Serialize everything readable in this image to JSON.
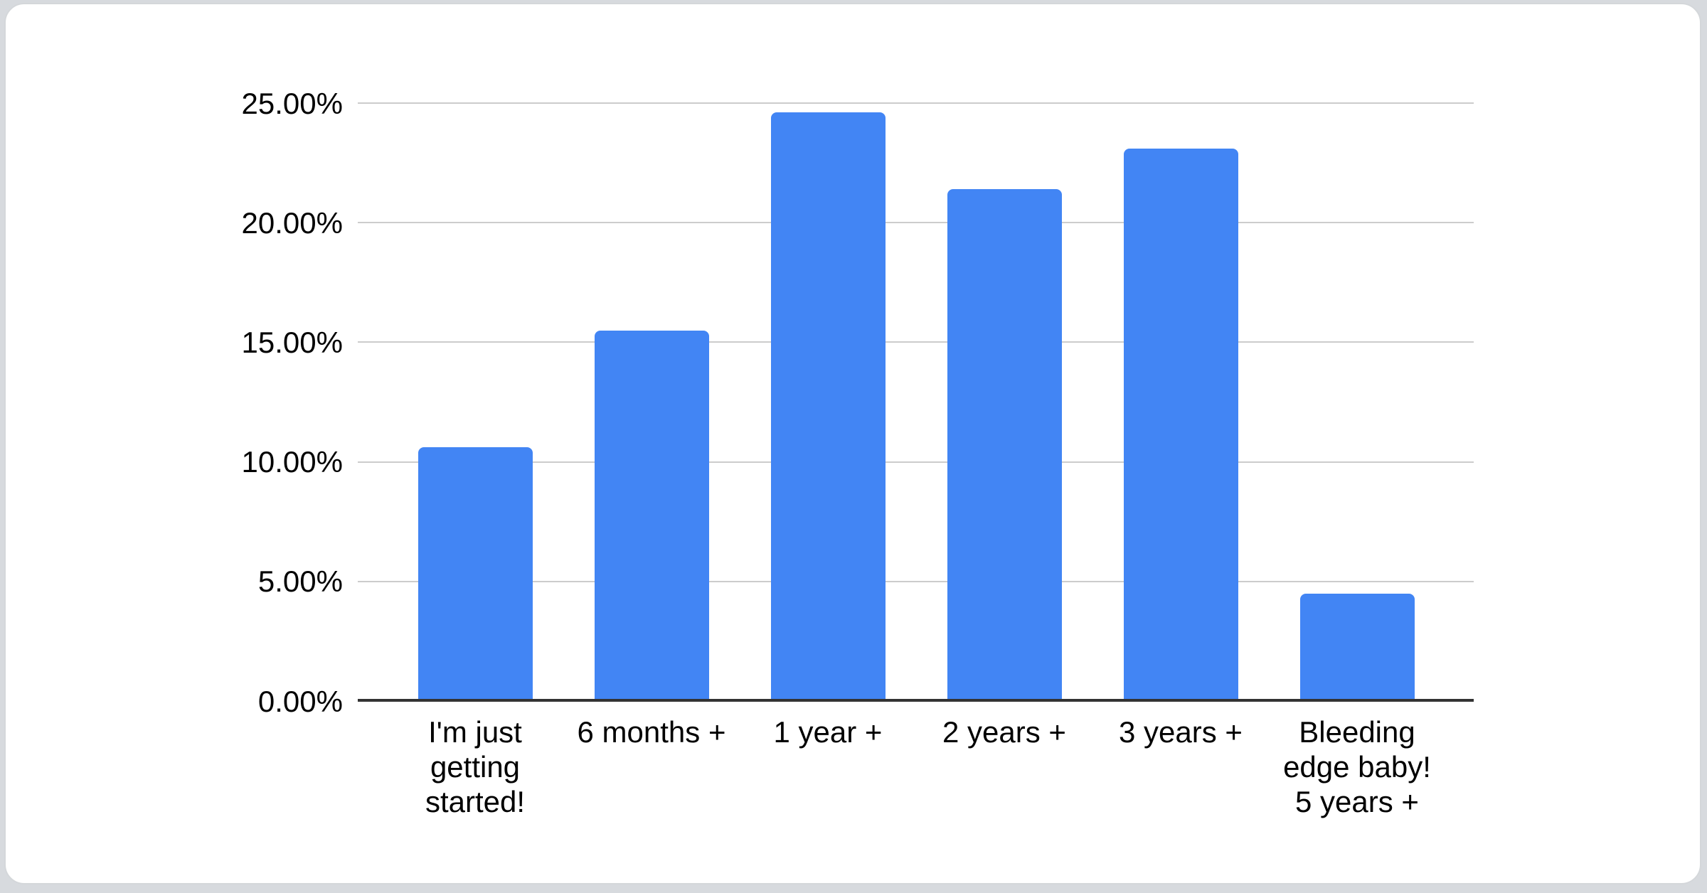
{
  "page": {
    "background_color": "#d7dade",
    "card_background_color": "#ffffff",
    "card_border_color": "#d4d7da"
  },
  "chart_data": {
    "type": "bar",
    "title": "",
    "categories": [
      "I'm just getting started!",
      "6 months +",
      "1 year +",
      "2 years +",
      "3 years +",
      "Bleeding edge baby! 5 years +"
    ],
    "values": [
      10.6,
      15.5,
      24.6,
      21.4,
      23.1,
      4.5
    ],
    "unit": "%",
    "y_axis": {
      "min": 0,
      "max": 25,
      "step": 5,
      "tick_labels": [
        "0.00%",
        "5.00%",
        "10.00%",
        "15.00%",
        "20.00%",
        "25.00%"
      ]
    },
    "grid": true,
    "legend_position": "none",
    "bar_color": "#4285f4",
    "grid_color": "#cccccc",
    "axis_line_color": "#333333",
    "label_color": "#000000"
  }
}
